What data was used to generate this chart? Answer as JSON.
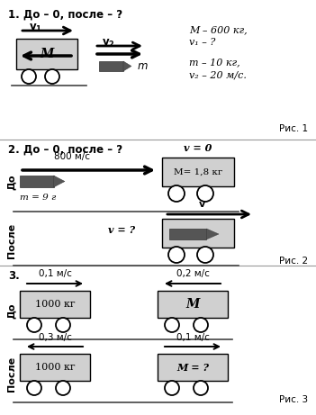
{
  "bg_color": "#ffffff",
  "s1_title": "1. До – 0, после – ?",
  "s1_params_line1": "M – 600 кг,",
  "s1_params_line2": "v₁ – ?",
  "s1_params_line3": "m – 10 кг,",
  "s1_params_line4": "v₂ – 20 м/с.",
  "s1_fig": "Рис. 1",
  "s2_title": "2. До – 0, после – ?",
  "s2_do": "До",
  "s2_posle": "После",
  "s2_speed": "800 м/с",
  "s2_m": "m = 9 г",
  "s2_cart": "M= 1,8 кг",
  "s2_v0": "v = 0",
  "s2_v": "v",
  "s2_vq": "v = ?",
  "s2_fig": "Рис. 2",
  "s3_title": "3.",
  "s3_do": "До",
  "s3_posle": "После",
  "s3_v1l": "0,1 м/с",
  "s3_v1r": "0,2 м/с",
  "s3_v2l": "0,3 м/с",
  "s3_v2r": "0,1 м/с",
  "s3_m1": "1000 кг",
  "s3_m2": "M",
  "s3_m3": "1000 кг",
  "s3_m4": "M = ?",
  "s3_fig": "Рис. 3",
  "cart_fc": "#d0d0d0",
  "cart_ec": "#000000",
  "wheel_fc": "#ffffff",
  "wheel_ec": "#000000",
  "bullet_fc": "#555555",
  "div_color": "#999999",
  "tc": "#000000"
}
